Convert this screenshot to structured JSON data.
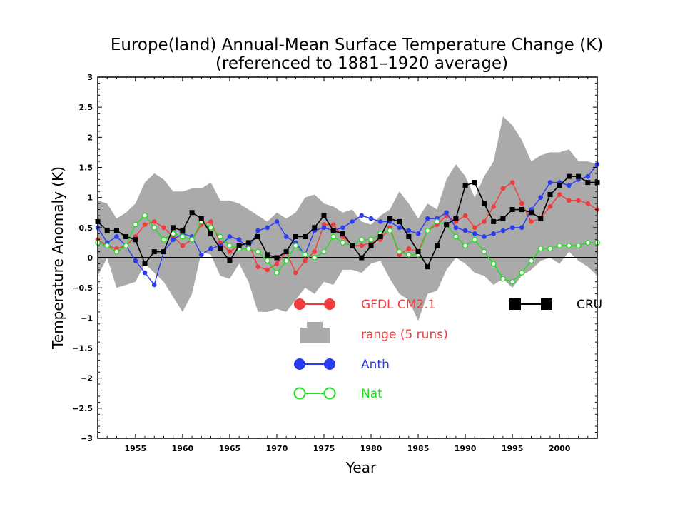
{
  "chart_data": {
    "type": "line",
    "title": "Europe(land) Annual-Mean Surface Temperature Change (K)",
    "subtitle": "(referenced to 1881–1920 average)",
    "xlabel": "Year",
    "ylabel": "Temperature Anomaly (K)",
    "xlim": [
      1951,
      2004
    ],
    "ylim": [
      -3,
      3
    ],
    "xticks": [
      1955,
      1960,
      1965,
      1970,
      1975,
      1980,
      1985,
      1990,
      1995,
      2000
    ],
    "yticks": [
      -3,
      -2.5,
      -2,
      -1.5,
      -1,
      -0.5,
      0,
      0.5,
      1,
      1.5,
      2,
      2.5,
      3
    ],
    "grid": false,
    "legend_position": "lower-center",
    "colors": {
      "gfdl": "#f03c3c",
      "anth": "#2a3cf0",
      "nat": "#22dd22",
      "cru": "#000000",
      "range": "#aaaaaa"
    },
    "x": [
      1951,
      1952,
      1953,
      1954,
      1955,
      1956,
      1957,
      1958,
      1959,
      1960,
      1961,
      1962,
      1963,
      1964,
      1965,
      1966,
      1967,
      1968,
      1969,
      1970,
      1971,
      1972,
      1973,
      1974,
      1975,
      1976,
      1977,
      1978,
      1979,
      1980,
      1981,
      1982,
      1983,
      1984,
      1985,
      1986,
      1987,
      1988,
      1989,
      1990,
      1991,
      1992,
      1993,
      1994,
      1995,
      1996,
      1997,
      1998,
      1999,
      2000,
      2001,
      2002,
      2003,
      2004
    ],
    "range": {
      "name": "range (5 runs)",
      "upper": [
        0.95,
        0.9,
        0.65,
        0.75,
        0.9,
        1.25,
        1.4,
        1.3,
        1.1,
        1.1,
        1.15,
        1.15,
        1.25,
        0.95,
        0.95,
        0.9,
        0.8,
        0.7,
        0.6,
        0.75,
        0.65,
        0.75,
        1.0,
        1.05,
        0.9,
        0.85,
        0.75,
        0.8,
        0.6,
        0.55,
        0.7,
        0.8,
        1.1,
        0.9,
        0.65,
        0.9,
        0.8,
        1.3,
        1.55,
        1.35,
        1.0,
        1.35,
        1.6,
        2.35,
        2.2,
        1.95,
        1.6,
        1.7,
        1.75,
        1.75,
        1.8,
        1.6,
        1.6,
        1.55
      ],
      "lower": [
        -0.3,
        0.0,
        -0.5,
        -0.45,
        -0.4,
        -0.1,
        -0.25,
        -0.4,
        -0.65,
        -0.9,
        -0.6,
        0.1,
        0.05,
        -0.3,
        -0.35,
        -0.1,
        -0.4,
        -0.9,
        -0.9,
        -0.85,
        -0.9,
        -0.7,
        -0.5,
        -0.6,
        -0.4,
        -0.45,
        -0.2,
        -0.2,
        -0.25,
        -0.1,
        -0.05,
        -0.35,
        -0.6,
        -0.7,
        -1.05,
        -0.6,
        -0.55,
        -0.2,
        0.0,
        -0.1,
        -0.25,
        -0.3,
        -0.45,
        -0.35,
        -0.5,
        -0.3,
        -0.2,
        -0.05,
        0.0,
        -0.1,
        0.1,
        -0.05,
        -0.15,
        -0.3
      ]
    },
    "series": [
      {
        "name": "GFDL CM2.1",
        "key": "gfdl",
        "values": [
          0.3,
          0.2,
          0.15,
          0.2,
          0.35,
          0.55,
          0.6,
          0.5,
          0.35,
          0.2,
          0.3,
          0.55,
          0.6,
          0.25,
          0.1,
          0.2,
          0.25,
          -0.15,
          -0.2,
          -0.1,
          0.1,
          -0.25,
          -0.05,
          0.1,
          0.55,
          0.55,
          0.35,
          0.2,
          0.2,
          0.25,
          0.3,
          0.5,
          0.05,
          0.15,
          0.1,
          0.45,
          0.55,
          0.7,
          0.6,
          0.7,
          0.5,
          0.6,
          0.85,
          1.15,
          1.25,
          0.9,
          0.6,
          0.65,
          0.85,
          1.05,
          0.95,
          0.95,
          0.9,
          0.8
        ]
      },
      {
        "name": "Anth",
        "key": "anth",
        "values": [
          0.5,
          0.25,
          0.35,
          0.2,
          -0.05,
          -0.25,
          -0.45,
          0.1,
          0.3,
          0.4,
          0.35,
          0.05,
          0.15,
          0.2,
          0.35,
          0.3,
          0.15,
          0.45,
          0.5,
          0.6,
          0.35,
          0.25,
          0.05,
          0.45,
          0.5,
          0.45,
          0.5,
          0.6,
          0.7,
          0.65,
          0.6,
          0.6,
          0.5,
          0.45,
          0.4,
          0.65,
          0.65,
          0.75,
          0.5,
          0.45,
          0.4,
          0.35,
          0.4,
          0.45,
          0.5,
          0.5,
          0.8,
          1.0,
          1.25,
          1.25,
          1.2,
          1.3,
          1.35,
          1.55
        ]
      },
      {
        "name": "Nat",
        "key": "nat",
        "values": [
          0.25,
          0.2,
          0.1,
          0.2,
          0.55,
          0.7,
          0.5,
          0.3,
          0.4,
          0.35,
          0.3,
          0.6,
          0.5,
          0.35,
          0.2,
          0.15,
          0.15,
          0.1,
          -0.05,
          -0.25,
          -0.05,
          0.2,
          0.05,
          0.0,
          0.1,
          0.35,
          0.25,
          0.2,
          0.3,
          0.3,
          0.4,
          0.45,
          0.1,
          0.05,
          0.05,
          0.45,
          0.6,
          0.55,
          0.35,
          0.2,
          0.3,
          0.1,
          -0.1,
          -0.35,
          -0.4,
          -0.25,
          -0.05,
          0.15,
          0.15,
          0.2,
          0.2,
          0.2,
          0.25,
          0.25
        ]
      },
      {
        "name": "CRU",
        "key": "cru",
        "values": [
          0.6,
          0.45,
          0.45,
          0.35,
          0.3,
          -0.1,
          0.1,
          0.1,
          0.5,
          0.45,
          0.75,
          0.65,
          0.4,
          0.15,
          -0.05,
          0.2,
          0.25,
          0.35,
          0.05,
          0.0,
          0.1,
          0.35,
          0.35,
          0.5,
          0.7,
          0.45,
          0.4,
          0.2,
          0.0,
          0.2,
          0.35,
          0.65,
          0.6,
          0.35,
          0.1,
          -0.15,
          0.2,
          0.55,
          0.65,
          1.2,
          1.25,
          0.9,
          0.6,
          0.65,
          0.8,
          0.8,
          0.75,
          0.65,
          1.05,
          1.2,
          1.35,
          1.35,
          1.25,
          1.25
        ]
      }
    ],
    "legend": {
      "gfdl_label": "GFDL CM2.1",
      "range_label": "range (5 runs)",
      "anth_label": "Anth",
      "nat_label": "Nat",
      "cru_label": "CRU"
    }
  }
}
